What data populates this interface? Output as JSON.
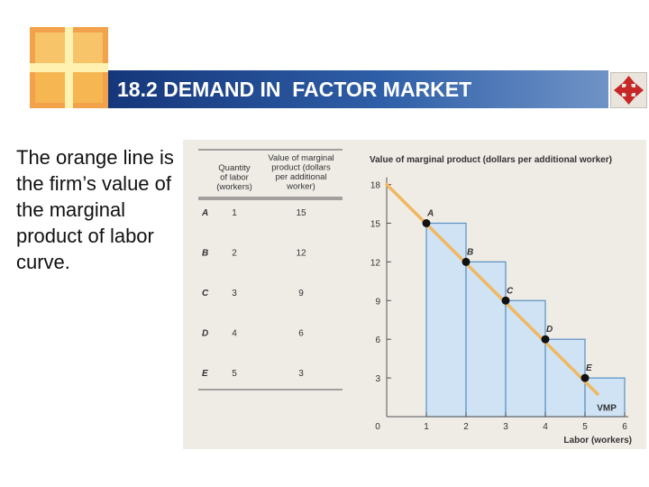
{
  "slide": {
    "title": "18.2 DEMAND IN  FACTOR MARKET",
    "body_text": "The orange line is the firm’s value of the marginal product of labor curve."
  },
  "icons": {
    "logo": "cross-window-logo",
    "nav": "four-way-arrow-icon"
  },
  "colors": {
    "title_bar": "#1f4a93",
    "bar_fill": "#cfe3f5",
    "bar_stroke": "#5a8fc2",
    "vmp_line": "#f0b860",
    "points": "#111111"
  },
  "table": {
    "headers": [
      "Quantity of labor (workers)",
      "Value of marginal product (dollars per additional worker)"
    ],
    "rows": [
      {
        "label": "A",
        "labor": "1",
        "vmp": "15"
      },
      {
        "label": "B",
        "labor": "2",
        "vmp": "12"
      },
      {
        "label": "C",
        "labor": "3",
        "vmp": "9"
      },
      {
        "label": "D",
        "labor": "4",
        "vmp": "6"
      },
      {
        "label": "E",
        "labor": "5",
        "vmp": "3"
      }
    ]
  },
  "chart_data": {
    "type": "bar",
    "ylabel": "Value of marginal product (dollars per additional worker)",
    "xlabel": "Labor (workers)",
    "x_ticks": [
      "0",
      "1",
      "2",
      "3",
      "4",
      "5",
      "6"
    ],
    "y_ticks": [
      "3",
      "6",
      "9",
      "12",
      "15",
      "18"
    ],
    "xlim": [
      0,
      6
    ],
    "ylim": [
      0,
      18
    ],
    "bars": [
      {
        "x_start": 1,
        "x_end": 2,
        "value": 15
      },
      {
        "x_start": 2,
        "x_end": 3,
        "value": 12
      },
      {
        "x_start": 3,
        "x_end": 4,
        "value": 9
      },
      {
        "x_start": 4,
        "x_end": 5,
        "value": 6
      },
      {
        "x_start": 5,
        "x_end": 6,
        "value": 3
      }
    ],
    "points": [
      {
        "label": "A",
        "x": 1,
        "y": 15
      },
      {
        "label": "B",
        "x": 2,
        "y": 12
      },
      {
        "label": "C",
        "x": 3,
        "y": 9
      },
      {
        "label": "D",
        "x": 4,
        "y": 6
      },
      {
        "label": "E",
        "x": 5,
        "y": 3
      }
    ],
    "line": {
      "name": "VMP",
      "from": [
        0,
        18
      ],
      "to": [
        6,
        0
      ]
    }
  }
}
